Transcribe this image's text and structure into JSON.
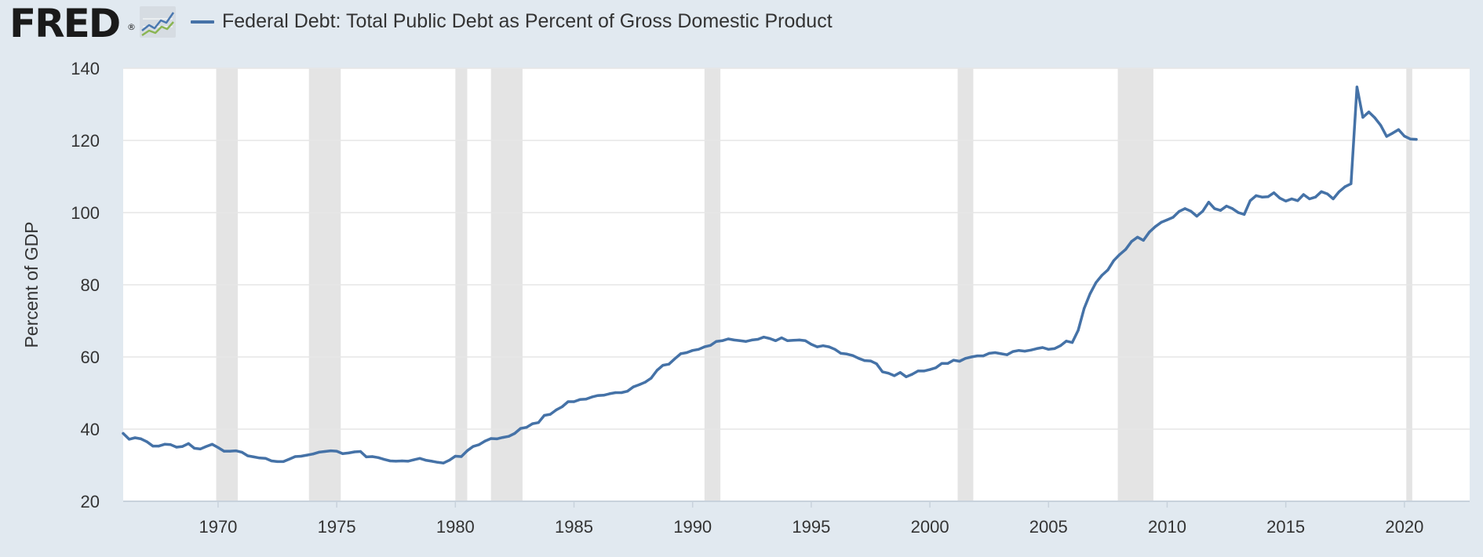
{
  "header": {
    "logo_text": "FRED",
    "logo_mark": "®",
    "logo_icon": "line-graph-icon",
    "legend_label": "Federal Debt: Total Public Debt as Percent of Gross Domestic Product"
  },
  "colors": {
    "background": "#e1e9f0",
    "plot_background": "#ffffff",
    "series": "#4572a7",
    "recession": "#e4e4e4",
    "grid": "#e6e6e6"
  },
  "chart_data": {
    "type": "line",
    "title": "",
    "ylabel": "Percent of GDP",
    "xlabel": "",
    "ylim": [
      20,
      140
    ],
    "xlim": [
      1966.0,
      2022.75
    ],
    "yticks": [
      "20",
      "40",
      "60",
      "80",
      "100",
      "120",
      "140"
    ],
    "xticks": [
      "1970",
      "1975",
      "1980",
      "1985",
      "1990",
      "1995",
      "2000",
      "2005",
      "2010",
      "2015",
      "2020"
    ],
    "grid": "horizontal",
    "recession_bands": [
      [
        1969.92,
        1970.83
      ],
      [
        1973.83,
        1975.17
      ],
      [
        1980.0,
        1980.5
      ],
      [
        1981.5,
        1982.83
      ],
      [
        1990.5,
        1991.17
      ],
      [
        2001.17,
        2001.83
      ],
      [
        2007.92,
        2009.42
      ],
      [
        2020.08,
        2020.33
      ]
    ],
    "series": [
      {
        "name": "Federal Debt: Total Public Debt as Percent of Gross Domestic Product",
        "points": [
          [
            1966.0,
            38.8
          ],
          [
            1966.25,
            37.2
          ],
          [
            1966.5,
            37.6
          ],
          [
            1966.75,
            37.3
          ],
          [
            1967.0,
            36.5
          ],
          [
            1967.25,
            35.3
          ],
          [
            1967.5,
            35.3
          ],
          [
            1967.75,
            35.8
          ],
          [
            1968.0,
            35.7
          ],
          [
            1968.25,
            35.0
          ],
          [
            1968.5,
            35.2
          ],
          [
            1968.75,
            36.0
          ],
          [
            1969.0,
            34.7
          ],
          [
            1969.25,
            34.5
          ],
          [
            1969.5,
            35.2
          ],
          [
            1969.75,
            35.8
          ],
          [
            1970.0,
            34.9
          ],
          [
            1970.25,
            33.9
          ],
          [
            1970.5,
            33.9
          ],
          [
            1970.75,
            34.0
          ],
          [
            1971.0,
            33.6
          ],
          [
            1971.25,
            32.6
          ],
          [
            1971.5,
            32.3
          ],
          [
            1971.75,
            32.0
          ],
          [
            1972.0,
            31.9
          ],
          [
            1972.25,
            31.2
          ],
          [
            1972.5,
            31.0
          ],
          [
            1972.75,
            31.0
          ],
          [
            1973.0,
            31.7
          ],
          [
            1973.25,
            32.4
          ],
          [
            1973.5,
            32.5
          ],
          [
            1973.75,
            32.8
          ],
          [
            1974.0,
            33.1
          ],
          [
            1974.25,
            33.6
          ],
          [
            1974.5,
            33.8
          ],
          [
            1974.75,
            34.0
          ],
          [
            1975.0,
            33.9
          ],
          [
            1975.25,
            33.2
          ],
          [
            1975.5,
            33.4
          ],
          [
            1975.75,
            33.7
          ],
          [
            1976.0,
            33.8
          ],
          [
            1976.25,
            32.3
          ],
          [
            1976.5,
            32.4
          ],
          [
            1976.75,
            32.1
          ],
          [
            1977.0,
            31.6
          ],
          [
            1977.25,
            31.2
          ],
          [
            1977.5,
            31.1
          ],
          [
            1977.75,
            31.2
          ],
          [
            1978.0,
            31.1
          ],
          [
            1978.25,
            31.5
          ],
          [
            1978.5,
            31.9
          ],
          [
            1978.75,
            31.4
          ],
          [
            1979.0,
            31.1
          ],
          [
            1979.25,
            30.8
          ],
          [
            1979.5,
            30.6
          ],
          [
            1979.75,
            31.4
          ],
          [
            1980.0,
            32.5
          ],
          [
            1980.25,
            32.4
          ],
          [
            1980.5,
            34.0
          ],
          [
            1980.75,
            35.2
          ],
          [
            1981.0,
            35.7
          ],
          [
            1981.25,
            36.7
          ],
          [
            1981.5,
            37.4
          ],
          [
            1981.75,
            37.3
          ],
          [
            1982.0,
            37.7
          ],
          [
            1982.25,
            38.0
          ],
          [
            1982.5,
            38.8
          ],
          [
            1982.75,
            40.2
          ],
          [
            1983.0,
            40.5
          ],
          [
            1983.25,
            41.5
          ],
          [
            1983.5,
            41.8
          ],
          [
            1983.75,
            43.8
          ],
          [
            1984.0,
            44.1
          ],
          [
            1984.25,
            45.3
          ],
          [
            1984.5,
            46.2
          ],
          [
            1984.75,
            47.6
          ],
          [
            1985.0,
            47.6
          ],
          [
            1985.25,
            48.2
          ],
          [
            1985.5,
            48.3
          ],
          [
            1985.75,
            48.9
          ],
          [
            1986.0,
            49.3
          ],
          [
            1986.25,
            49.4
          ],
          [
            1986.5,
            49.8
          ],
          [
            1986.75,
            50.1
          ],
          [
            1987.0,
            50.1
          ],
          [
            1987.25,
            50.5
          ],
          [
            1987.5,
            51.7
          ],
          [
            1987.75,
            52.3
          ],
          [
            1988.0,
            53.0
          ],
          [
            1988.25,
            54.1
          ],
          [
            1988.5,
            56.3
          ],
          [
            1988.75,
            57.7
          ],
          [
            1989.0,
            58.0
          ],
          [
            1989.25,
            59.5
          ],
          [
            1989.5,
            60.9
          ],
          [
            1989.75,
            61.2
          ],
          [
            1990.0,
            61.8
          ],
          [
            1990.25,
            62.1
          ],
          [
            1990.5,
            62.8
          ],
          [
            1990.75,
            63.2
          ],
          [
            1991.0,
            64.3
          ],
          [
            1991.25,
            64.5
          ],
          [
            1991.5,
            65.0
          ],
          [
            1991.75,
            64.7
          ],
          [
            1992.0,
            64.5
          ],
          [
            1992.25,
            64.3
          ],
          [
            1992.5,
            64.7
          ],
          [
            1992.75,
            64.9
          ],
          [
            1993.0,
            65.5
          ],
          [
            1993.25,
            65.1
          ],
          [
            1993.5,
            64.5
          ],
          [
            1993.75,
            65.3
          ],
          [
            1994.0,
            64.5
          ],
          [
            1994.25,
            64.6
          ],
          [
            1994.5,
            64.7
          ],
          [
            1994.75,
            64.5
          ],
          [
            1995.0,
            63.5
          ],
          [
            1995.25,
            62.8
          ],
          [
            1995.5,
            63.1
          ],
          [
            1995.75,
            62.8
          ],
          [
            1996.0,
            62.1
          ],
          [
            1996.25,
            61.0
          ],
          [
            1996.5,
            60.8
          ],
          [
            1996.75,
            60.4
          ],
          [
            1997.0,
            59.6
          ],
          [
            1997.25,
            59.0
          ],
          [
            1997.5,
            58.9
          ],
          [
            1997.75,
            58.1
          ],
          [
            1998.0,
            55.9
          ],
          [
            1998.25,
            55.5
          ],
          [
            1998.5,
            54.8
          ],
          [
            1998.75,
            55.7
          ],
          [
            1999.0,
            54.5
          ],
          [
            1999.25,
            55.2
          ],
          [
            1999.5,
            56.1
          ],
          [
            1999.75,
            56.1
          ],
          [
            2000.0,
            56.5
          ],
          [
            2000.25,
            57.0
          ],
          [
            2000.5,
            58.2
          ],
          [
            2000.75,
            58.2
          ],
          [
            2001.0,
            59.1
          ],
          [
            2001.25,
            58.8
          ],
          [
            2001.5,
            59.6
          ],
          [
            2001.75,
            60.0
          ],
          [
            2002.0,
            60.3
          ],
          [
            2002.25,
            60.3
          ],
          [
            2002.5,
            61.0
          ],
          [
            2002.75,
            61.2
          ],
          [
            2003.0,
            60.9
          ],
          [
            2003.25,
            60.6
          ],
          [
            2003.5,
            61.5
          ],
          [
            2003.75,
            61.8
          ],
          [
            2004.0,
            61.6
          ],
          [
            2004.25,
            61.9
          ],
          [
            2004.5,
            62.3
          ],
          [
            2004.75,
            62.6
          ],
          [
            2005.0,
            62.1
          ],
          [
            2005.25,
            62.3
          ],
          [
            2005.5,
            63.1
          ],
          [
            2005.75,
            64.4
          ],
          [
            2006.0,
            64.0
          ],
          [
            2006.25,
            67.4
          ],
          [
            2006.5,
            73.4
          ],
          [
            2006.75,
            77.5
          ],
          [
            2007.0,
            80.6
          ],
          [
            2007.25,
            82.6
          ],
          [
            2007.5,
            84.1
          ],
          [
            2007.75,
            86.7
          ],
          [
            2008.0,
            88.4
          ],
          [
            2008.25,
            89.8
          ],
          [
            2008.5,
            92.0
          ],
          [
            2008.75,
            93.2
          ],
          [
            2009.0,
            92.3
          ],
          [
            2009.25,
            94.6
          ],
          [
            2009.5,
            96.1
          ],
          [
            2009.75,
            97.3
          ],
          [
            2010.0,
            98.0
          ],
          [
            2010.25,
            98.7
          ],
          [
            2010.5,
            100.3
          ],
          [
            2010.75,
            101.1
          ],
          [
            2011.0,
            100.4
          ],
          [
            2011.25,
            99.0
          ],
          [
            2011.5,
            100.4
          ],
          [
            2011.75,
            102.9
          ],
          [
            2012.0,
            101.1
          ],
          [
            2012.25,
            100.6
          ],
          [
            2012.5,
            101.8
          ],
          [
            2012.75,
            101.1
          ],
          [
            2013.0,
            100.0
          ],
          [
            2013.25,
            99.5
          ],
          [
            2013.5,
            103.3
          ],
          [
            2013.75,
            104.7
          ],
          [
            2014.0,
            104.3
          ],
          [
            2014.25,
            104.4
          ],
          [
            2014.5,
            105.5
          ],
          [
            2014.75,
            104.0
          ],
          [
            2015.0,
            103.2
          ],
          [
            2015.25,
            103.8
          ],
          [
            2015.5,
            103.3
          ],
          [
            2015.75,
            105.0
          ],
          [
            2016.0,
            103.8
          ],
          [
            2016.25,
            104.3
          ],
          [
            2016.5,
            105.8
          ],
          [
            2016.75,
            105.2
          ],
          [
            2017.0,
            103.8
          ],
          [
            2017.25,
            105.8
          ],
          [
            2017.5,
            107.2
          ],
          [
            2017.75,
            108.0
          ],
          [
            2018.0,
            134.8
          ],
          [
            2018.25,
            126.4
          ],
          [
            2018.5,
            127.9
          ],
          [
            2018.75,
            126.3
          ],
          [
            2019.0,
            124.2
          ],
          [
            2019.25,
            121.1
          ],
          [
            2019.5,
            122.0
          ],
          [
            2019.75,
            123.0
          ],
          [
            2020.0,
            121.2
          ],
          [
            2020.25,
            120.4
          ],
          [
            2020.5,
            120.3
          ]
        ]
      }
    ]
  }
}
